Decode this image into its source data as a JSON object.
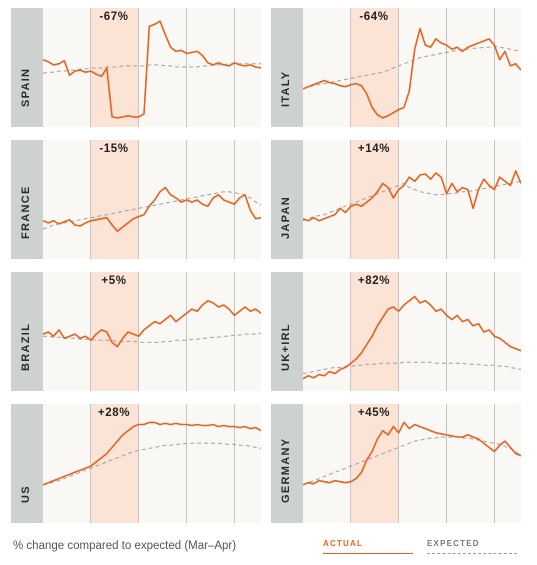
{
  "chart_data": {
    "type": "line",
    "colors": {
      "actual": "#e8611c",
      "expected": "#a0a0a0",
      "highlight": "#fbe3d6"
    },
    "panels": [
      {
        "country": "SPAIN",
        "change": "-67%",
        "actual": [
          0.58,
          0.56,
          0.53,
          0.54,
          0.57,
          0.43,
          0.47,
          0.48,
          0.46,
          0.47,
          0.44,
          0.42,
          0.5,
          0.03,
          0.02,
          0.03,
          0.04,
          0.03,
          0.03,
          0.06,
          0.9,
          0.92,
          0.95,
          0.82,
          0.7,
          0.66,
          0.67,
          0.64,
          0.65,
          0.66,
          0.62,
          0.55,
          0.53,
          0.55,
          0.53,
          0.52,
          0.55,
          0.53,
          0.52,
          0.53,
          0.51,
          0.5
        ],
        "expected": [
          0.45,
          0.46,
          0.46,
          0.47,
          0.47,
          0.48,
          0.48,
          0.49,
          0.49,
          0.5,
          0.5,
          0.5,
          0.51,
          0.51,
          0.51,
          0.52,
          0.52,
          0.52,
          0.52,
          0.52,
          0.53,
          0.53,
          0.53,
          0.52,
          0.52,
          0.51,
          0.51,
          0.51,
          0.51,
          0.51,
          0.52,
          0.52,
          0.53,
          0.53,
          0.53,
          0.54,
          0.54,
          0.54,
          0.54,
          0.54,
          0.54,
          0.54
        ]
      },
      {
        "country": "ITALY",
        "change": "-64%",
        "actual": [
          0.3,
          0.32,
          0.34,
          0.36,
          0.38,
          0.36,
          0.35,
          0.33,
          0.32,
          0.34,
          0.35,
          0.33,
          0.25,
          0.12,
          0.05,
          0.02,
          0.04,
          0.07,
          0.1,
          0.12,
          0.28,
          0.68,
          0.88,
          0.72,
          0.7,
          0.78,
          0.74,
          0.72,
          0.68,
          0.7,
          0.66,
          0.7,
          0.72,
          0.74,
          0.76,
          0.78,
          0.72,
          0.58,
          0.66,
          0.52,
          0.54,
          0.48
        ],
        "expected": [
          0.3,
          0.32,
          0.33,
          0.34,
          0.35,
          0.36,
          0.37,
          0.38,
          0.39,
          0.4,
          0.41,
          0.42,
          0.43,
          0.44,
          0.45,
          0.46,
          0.48,
          0.5,
          0.52,
          0.54,
          0.56,
          0.58,
          0.6,
          0.61,
          0.62,
          0.63,
          0.64,
          0.65,
          0.66,
          0.67,
          0.68,
          0.68,
          0.69,
          0.69,
          0.7,
          0.7,
          0.71,
          0.7,
          0.69,
          0.68,
          0.67,
          0.66
        ]
      },
      {
        "country": "FRANCE",
        "change": "-15%",
        "actual": [
          0.3,
          0.28,
          0.3,
          0.27,
          0.29,
          0.31,
          0.26,
          0.25,
          0.28,
          0.3,
          0.31,
          0.32,
          0.33,
          0.26,
          0.2,
          0.24,
          0.28,
          0.32,
          0.34,
          0.36,
          0.44,
          0.5,
          0.58,
          0.62,
          0.55,
          0.52,
          0.48,
          0.5,
          0.48,
          0.5,
          0.46,
          0.44,
          0.52,
          0.55,
          0.5,
          0.48,
          0.46,
          0.52,
          0.55,
          0.4,
          0.32,
          0.33
        ],
        "expected": [
          0.22,
          0.24,
          0.26,
          0.27,
          0.28,
          0.29,
          0.3,
          0.31,
          0.32,
          0.33,
          0.34,
          0.35,
          0.36,
          0.37,
          0.38,
          0.39,
          0.4,
          0.41,
          0.42,
          0.43,
          0.44,
          0.45,
          0.46,
          0.47,
          0.48,
          0.49,
          0.5,
          0.51,
          0.52,
          0.53,
          0.54,
          0.55,
          0.56,
          0.57,
          0.58,
          0.58,
          0.57,
          0.56,
          0.55,
          0.52,
          0.48,
          0.45
        ]
      },
      {
        "country": "JAPAN",
        "change": "+14%",
        "actual": [
          0.32,
          0.3,
          0.33,
          0.3,
          0.32,
          0.34,
          0.36,
          0.42,
          0.38,
          0.44,
          0.46,
          0.44,
          0.48,
          0.52,
          0.58,
          0.66,
          0.62,
          0.52,
          0.6,
          0.64,
          0.72,
          0.68,
          0.74,
          0.75,
          0.7,
          0.76,
          0.72,
          0.56,
          0.66,
          0.58,
          0.62,
          0.6,
          0.42,
          0.6,
          0.7,
          0.64,
          0.6,
          0.72,
          0.68,
          0.64,
          0.78,
          0.66
        ],
        "expected": [
          0.3,
          0.32,
          0.34,
          0.35,
          0.36,
          0.38,
          0.4,
          0.42,
          0.44,
          0.46,
          0.48,
          0.5,
          0.52,
          0.54,
          0.56,
          0.58,
          0.6,
          0.62,
          0.64,
          0.66,
          0.62,
          0.6,
          0.58,
          0.57,
          0.56,
          0.55,
          0.55,
          0.56,
          0.56,
          0.57,
          0.58,
          0.58,
          0.59,
          0.6,
          0.61,
          0.62,
          0.63,
          0.64,
          0.65,
          0.66,
          0.67,
          0.68
        ]
      },
      {
        "country": "BRAZIL",
        "change": "+5%",
        "actual": [
          0.48,
          0.5,
          0.46,
          0.52,
          0.44,
          0.46,
          0.48,
          0.44,
          0.46,
          0.42,
          0.48,
          0.52,
          0.5,
          0.4,
          0.36,
          0.44,
          0.5,
          0.48,
          0.46,
          0.52,
          0.56,
          0.6,
          0.58,
          0.62,
          0.66,
          0.6,
          0.64,
          0.68,
          0.72,
          0.7,
          0.76,
          0.8,
          0.78,
          0.74,
          0.76,
          0.72,
          0.66,
          0.7,
          0.74,
          0.7,
          0.72,
          0.68
        ],
        "expected": [
          0.46,
          0.46,
          0.45,
          0.45,
          0.44,
          0.44,
          0.44,
          0.43,
          0.43,
          0.43,
          0.42,
          0.42,
          0.42,
          0.42,
          0.41,
          0.41,
          0.41,
          0.41,
          0.4,
          0.4,
          0.4,
          0.4,
          0.4,
          0.41,
          0.41,
          0.42,
          0.42,
          0.42,
          0.43,
          0.43,
          0.44,
          0.44,
          0.45,
          0.45,
          0.46,
          0.46,
          0.47,
          0.47,
          0.48,
          0.48,
          0.48,
          0.49
        ]
      },
      {
        "country": "UK+IRL",
        "change": "+82%",
        "actual": [
          0.05,
          0.08,
          0.06,
          0.09,
          0.08,
          0.12,
          0.1,
          0.14,
          0.16,
          0.2,
          0.24,
          0.3,
          0.38,
          0.46,
          0.56,
          0.64,
          0.72,
          0.74,
          0.7,
          0.76,
          0.8,
          0.84,
          0.78,
          0.8,
          0.76,
          0.7,
          0.72,
          0.66,
          0.62,
          0.66,
          0.6,
          0.62,
          0.56,
          0.58,
          0.5,
          0.52,
          0.46,
          0.44,
          0.4,
          0.36,
          0.34,
          0.32
        ],
        "expected": [
          0.1,
          0.11,
          0.12,
          0.13,
          0.14,
          0.15,
          0.16,
          0.16,
          0.17,
          0.17,
          0.18,
          0.18,
          0.19,
          0.19,
          0.19,
          0.2,
          0.2,
          0.2,
          0.2,
          0.21,
          0.21,
          0.21,
          0.21,
          0.21,
          0.21,
          0.2,
          0.2,
          0.2,
          0.2,
          0.2,
          0.2,
          0.19,
          0.19,
          0.19,
          0.18,
          0.18,
          0.18,
          0.17,
          0.17,
          0.16,
          0.15,
          0.14
        ]
      },
      {
        "country": "US",
        "change": "+28%",
        "actual": [
          0.3,
          0.32,
          0.34,
          0.36,
          0.38,
          0.4,
          0.42,
          0.44,
          0.46,
          0.48,
          0.52,
          0.56,
          0.6,
          0.66,
          0.72,
          0.78,
          0.82,
          0.86,
          0.88,
          0.88,
          0.9,
          0.9,
          0.88,
          0.89,
          0.88,
          0.89,
          0.88,
          0.88,
          0.87,
          0.88,
          0.87,
          0.87,
          0.88,
          0.86,
          0.87,
          0.86,
          0.86,
          0.85,
          0.86,
          0.84,
          0.85,
          0.82
        ],
        "expected": [
          0.3,
          0.31,
          0.33,
          0.34,
          0.36,
          0.38,
          0.4,
          0.42,
          0.44,
          0.46,
          0.48,
          0.5,
          0.52,
          0.54,
          0.56,
          0.58,
          0.6,
          0.62,
          0.63,
          0.64,
          0.65,
          0.66,
          0.67,
          0.68,
          0.68,
          0.69,
          0.69,
          0.7,
          0.7,
          0.7,
          0.7,
          0.7,
          0.7,
          0.7,
          0.69,
          0.69,
          0.69,
          0.68,
          0.68,
          0.67,
          0.66,
          0.65
        ]
      },
      {
        "country": "GERMANY",
        "change": "+45%",
        "actual": [
          0.3,
          0.32,
          0.31,
          0.34,
          0.33,
          0.32,
          0.34,
          0.33,
          0.32,
          0.33,
          0.36,
          0.42,
          0.54,
          0.62,
          0.74,
          0.82,
          0.78,
          0.86,
          0.8,
          0.9,
          0.84,
          0.88,
          0.86,
          0.84,
          0.82,
          0.8,
          0.79,
          0.78,
          0.77,
          0.76,
          0.76,
          0.78,
          0.76,
          0.74,
          0.7,
          0.66,
          0.62,
          0.68,
          0.72,
          0.66,
          0.6,
          0.58
        ],
        "expected": [
          0.3,
          0.32,
          0.34,
          0.36,
          0.38,
          0.4,
          0.42,
          0.44,
          0.46,
          0.48,
          0.5,
          0.52,
          0.54,
          0.56,
          0.58,
          0.6,
          0.62,
          0.64,
          0.66,
          0.68,
          0.7,
          0.72,
          0.73,
          0.74,
          0.75,
          0.75,
          0.76,
          0.76,
          0.76,
          0.76,
          0.75,
          0.75,
          0.74,
          0.73,
          0.72,
          0.71,
          0.7,
          0.69,
          0.67,
          0.65,
          0.62,
          0.58
        ]
      }
    ]
  },
  "legend": {
    "actual_label": "ACTUAL",
    "expected_label": "EXPECTED"
  },
  "caption": "% change compared to expected (Mar–Apr)"
}
